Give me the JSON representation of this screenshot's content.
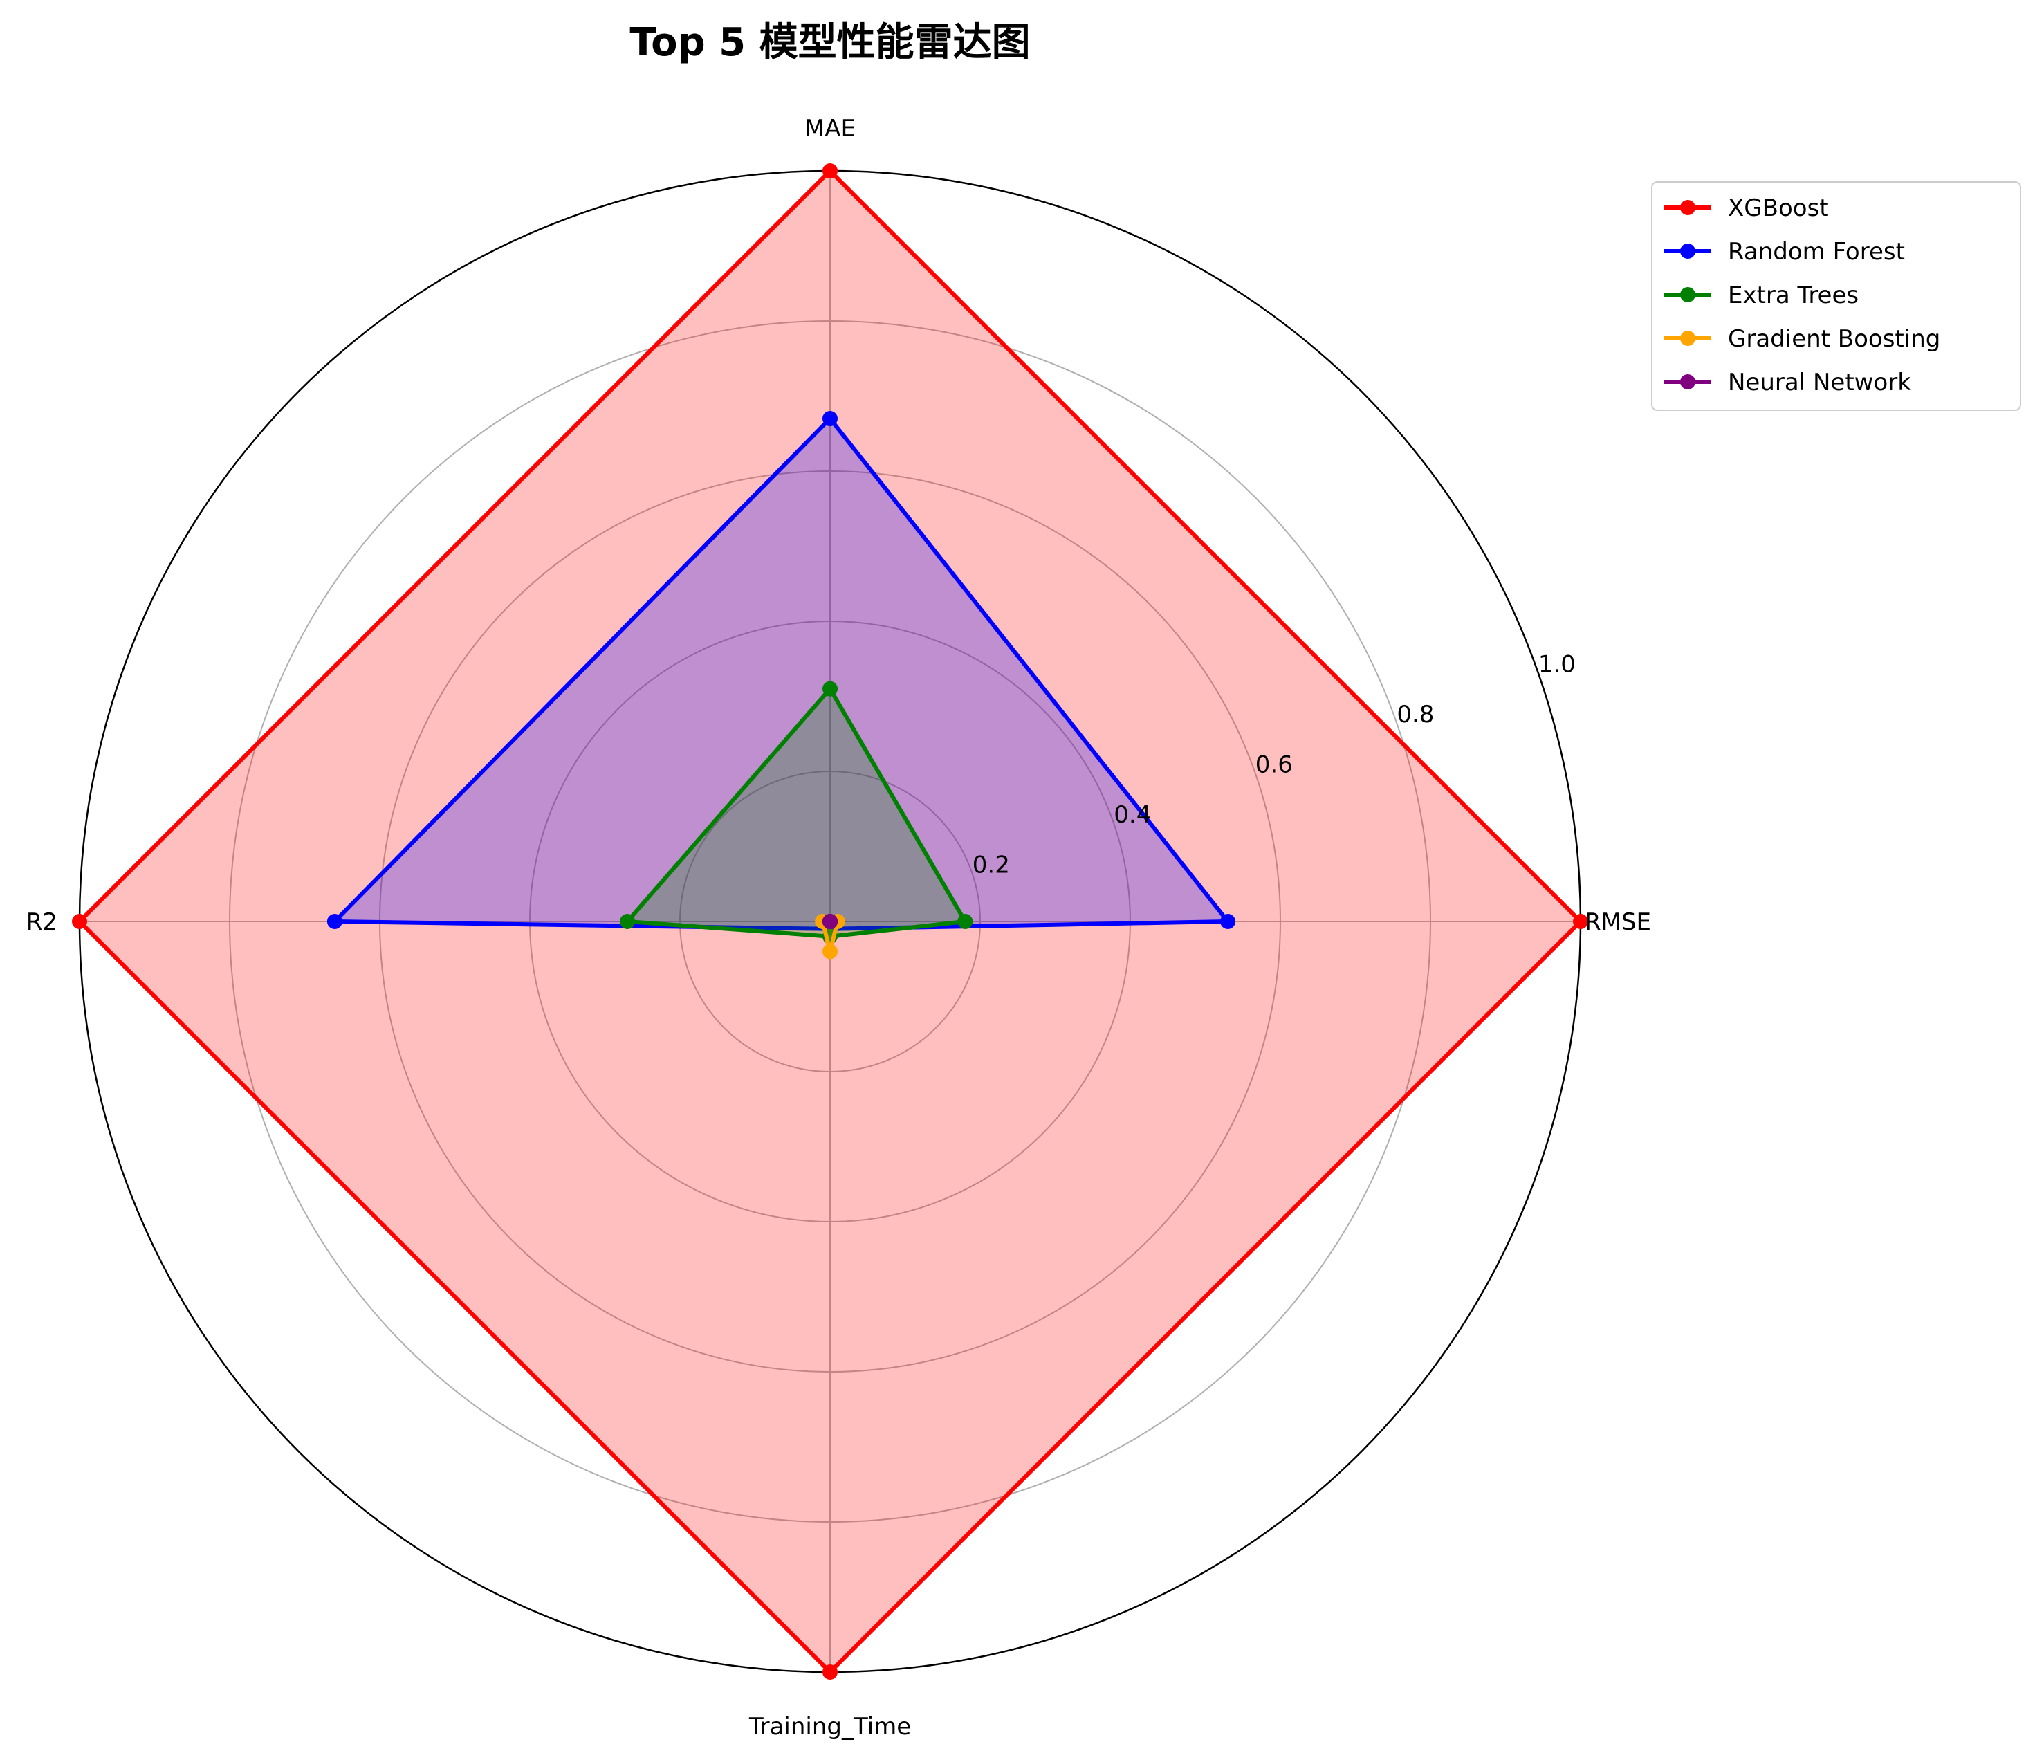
{
  "chart_data": {
    "type": "radar",
    "title": "Top 5 模型性能雷达图",
    "axes": [
      "MAE",
      "RMSE",
      "Training_Time",
      "R2"
    ],
    "rlim": [
      0,
      1.0
    ],
    "radial_ticks": [
      0.2,
      0.4,
      0.6,
      0.8,
      1.0
    ],
    "radial_tick_labels": [
      "0.2",
      "0.4",
      "0.6",
      "0.8",
      "1.0"
    ],
    "grid": true,
    "legend_position": "top-right",
    "series": [
      {
        "name": "XGBoost",
        "color": "#ff0000",
        "fill_opacity": 0.25,
        "values": [
          1.0,
          1.0,
          1.0,
          1.0
        ]
      },
      {
        "name": "Random Forest",
        "color": "#0000ff",
        "fill_opacity": 0.25,
        "values": [
          0.67,
          0.53,
          0.01,
          0.66
        ]
      },
      {
        "name": "Extra Trees",
        "color": "#008000",
        "fill_opacity": 0.25,
        "values": [
          0.31,
          0.18,
          0.02,
          0.27
        ]
      },
      {
        "name": "Gradient Boosting",
        "color": "#ffa500",
        "fill_opacity": 0.25,
        "values": [
          0.0,
          0.01,
          0.04,
          0.01
        ]
      },
      {
        "name": "Neural Network",
        "color": "#800080",
        "fill_opacity": 0.25,
        "values": [
          0.0,
          0.0,
          0.0,
          0.0
        ]
      }
    ]
  }
}
